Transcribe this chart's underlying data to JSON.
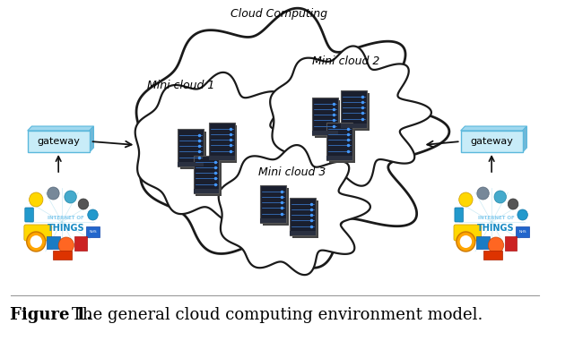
{
  "title": "Cloud Computing",
  "caption_bold": "Figure 1.",
  "caption_text": "The general cloud computing environment model.",
  "mini_cloud_labels": [
    "Mini cloud 1",
    "Mini cloud 2",
    "Mini cloud 3"
  ],
  "gateway_label": "gateway",
  "background_color": "#ffffff",
  "cloud_edge_color": "#1a1a1a",
  "cloud_fill_color": "#ffffff",
  "gateway_fill": "#c8ecf8",
  "gateway_edge": "#5bb8dc",
  "arrow_color": "#111111",
  "font_size_title": 9,
  "font_size_mini_label": 8,
  "font_size_caption_bold": 13,
  "font_size_caption": 13
}
